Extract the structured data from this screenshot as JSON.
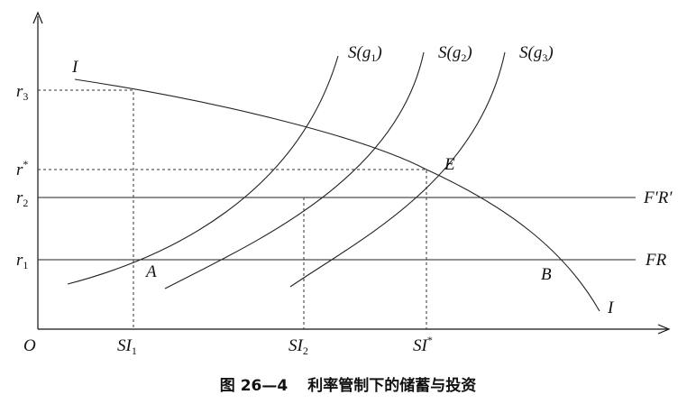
{
  "axis_labels": [
    {
      "main": "r",
      "sub": "3"
    },
    {
      "main": "r",
      "sup": "*"
    },
    {
      "main": "r",
      "sub": "2"
    },
    {
      "main": "r",
      "sub": "1"
    },
    {
      "main": "O"
    },
    {
      "main": "SI",
      "sub": "1"
    },
    {
      "main": "SI",
      "sub": "2"
    },
    {
      "main": "SI",
      "sup": "*"
    }
  ],
  "curve_labels": [
    {
      "main": "I"
    },
    {
      "main": "I"
    },
    {
      "main": "S(g",
      "sub": "1",
      "end": ")"
    },
    {
      "main": "S(g",
      "sub": "2",
      "end": ")"
    },
    {
      "main": "S(g",
      "sub": "3",
      "end": ")"
    },
    {
      "main": "E"
    },
    {
      "main": "A"
    },
    {
      "main": "B"
    },
    {
      "main": "F′R′"
    },
    {
      "main": "FR"
    }
  ],
  "caption": {
    "figure": "图 26—4",
    "title": "利率管制下的储蓄与投资"
  }
}
